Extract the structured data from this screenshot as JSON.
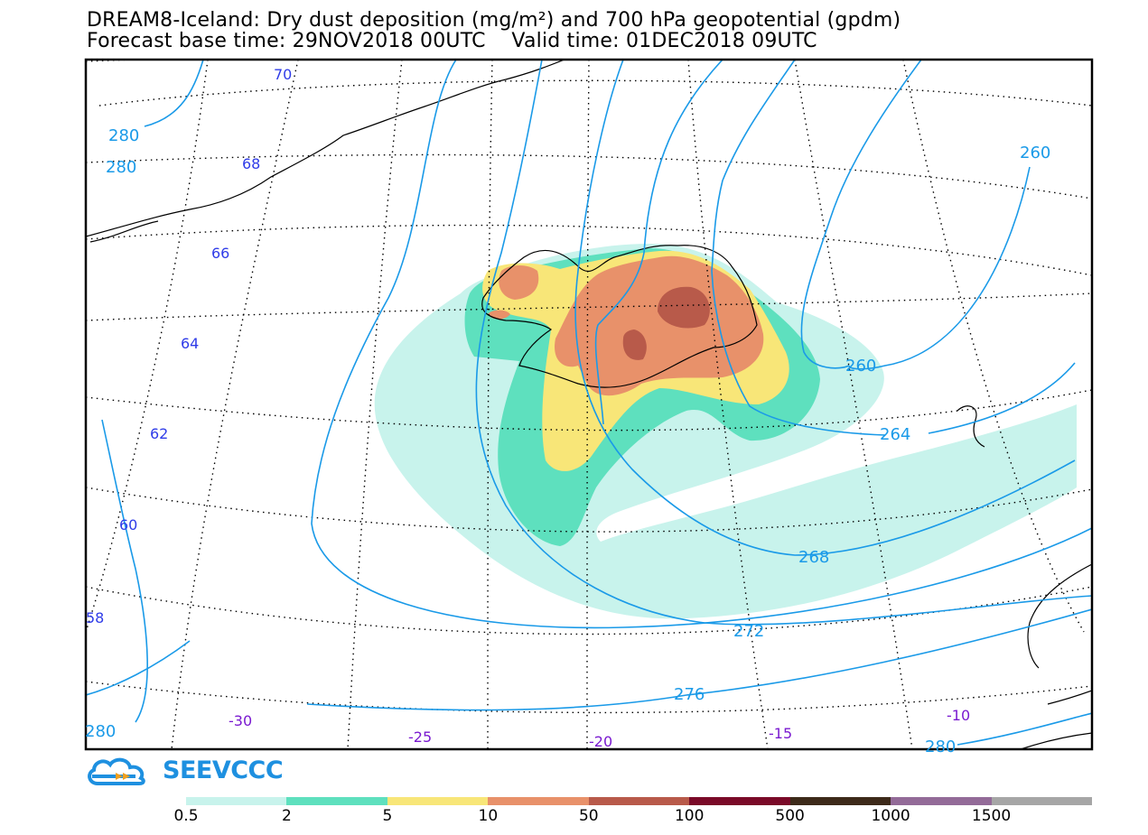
{
  "title": {
    "line1": "DREAM8-Iceland: Dry dust deposition (mg/m²) and 700 hPa geopotential (gpdm)",
    "line2": "Forecast base time: 29NOV2018 00UTC    Valid time: 01DEC2018 09UTC"
  },
  "logo": {
    "text": "SEEVCCC",
    "icon": "cloud-arrow-icon"
  },
  "colorbar": {
    "labels": [
      "0.5",
      "2",
      "5",
      "10",
      "50",
      "100",
      "500",
      "1000",
      "1500"
    ],
    "colors": [
      "#c8f3ec",
      "#5ee0be",
      "#f8e678",
      "#e8916a",
      "#b85a4a",
      "#7a0a28",
      "#3d2a1a",
      "#936b98",
      "#a6a6a6"
    ]
  },
  "map": {
    "latitude_labels": [
      "70",
      "68",
      "66",
      "64",
      "62",
      "60",
      "58"
    ],
    "longitude_labels": [
      "-30",
      "-25",
      "-20",
      "-15",
      "-10"
    ],
    "contour_labels": [
      "280",
      "280",
      "280",
      "276",
      "272",
      "268",
      "264",
      "260",
      "260",
      "280"
    ],
    "contour_color": "#1a9ae8",
    "lat_label_color": "#2f3ce8",
    "lon_label_color": "#7a1ad0"
  }
}
